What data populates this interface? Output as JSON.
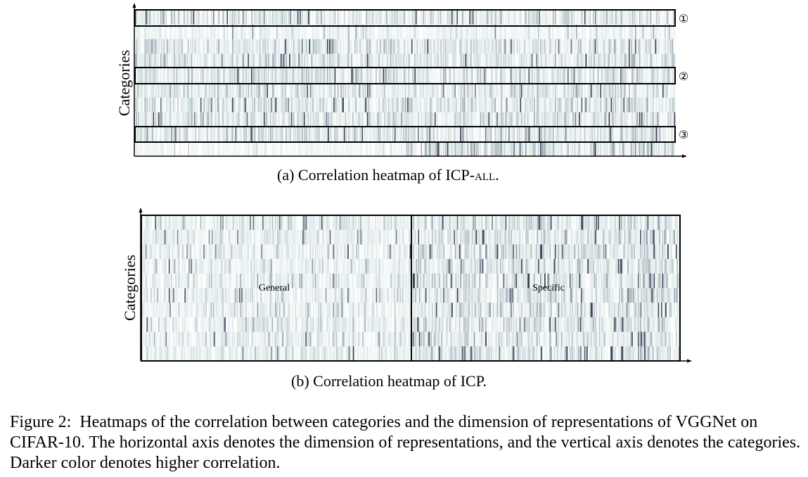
{
  "chart_data": [
    {
      "type": "heatmap",
      "ylabel": "Categories",
      "xlabel": "",
      "rows": 10,
      "columns": 512,
      "colormap": [
        "#ffffff",
        "#dde8e8",
        "#9fa9b4",
        "#3c4356"
      ],
      "band_markers": [
        {
          "label": "①",
          "row": 1
        },
        {
          "label": "②",
          "row": 5
        },
        {
          "label": "③",
          "row": 9
        }
      ],
      "caption_prefix": "(a)",
      "caption_text": "Correlation heatmap of ICP-",
      "caption_smallcaps": "ALL",
      "caption_suffix": "."
    },
    {
      "type": "heatmap",
      "ylabel": "Categories",
      "xlabel": "",
      "rows": 10,
      "columns": 512,
      "colormap": [
        "#ffffff",
        "#dde8e8",
        "#9fa9b4",
        "#3c4356"
      ],
      "regions": [
        {
          "label": "General"
        },
        {
          "label": "Specific"
        }
      ],
      "caption_prefix": "(b)",
      "caption_text": "Correlation heatmap of ICP.",
      "caption_smallcaps": "",
      "caption_suffix": ""
    }
  ],
  "figure": {
    "label": "Figure 2:",
    "text": "Heatmaps of the correlation between categories and the dimension of representations of VGGNet on CIFAR-10. The horizontal axis denotes the dimension of representations, and the vertical axis denotes the categories. Darker color denotes higher correlation."
  }
}
